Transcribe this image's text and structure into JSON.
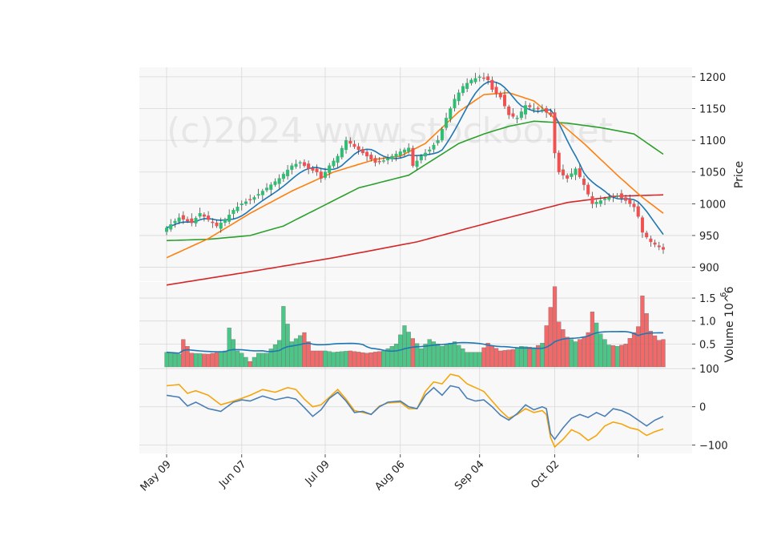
{
  "chart_data": {
    "type": "candlestick",
    "watermark": "(c)2024 www.stockoo.net",
    "x_ticks": [
      "May 09",
      "Jun 07",
      "Jul 09",
      "Aug 06",
      "Sep 04",
      "Oct 02"
    ],
    "colors": {
      "up": "#2ebd73",
      "down": "#f05050",
      "ma_short": "#1f77b4",
      "ma_mid": "#ff7f0e",
      "ma_long": "#2ca02c",
      "ma_200": "#d62728",
      "volume_avg": "#1f77b4",
      "osc_fast": "#4a7fb5",
      "osc_slow": "#f5a50a"
    },
    "price_panel": {
      "ylabel": "Price",
      "ylim": [
        878,
        1215
      ],
      "yticks": [
        900,
        950,
        1000,
        1050,
        1100,
        1150,
        1200
      ]
    },
    "volume_panel": {
      "ylabel": "Volume  10^6",
      "ylim": [
        0,
        1.85
      ],
      "yticks": [
        0.5,
        1.0,
        1.5
      ],
      "ytick_labels": [
        "0.5",
        "1.0",
        "1.5"
      ]
    },
    "oscillator_panel": {
      "ylim": [
        -122,
        102
      ],
      "yticks": [
        -100,
        0,
        100
      ],
      "ytick_labels": [
        "−100",
        "0",
        "100"
      ]
    },
    "close_anchors": [
      [
        0,
        962
      ],
      [
        3,
        978
      ],
      [
        6,
        970
      ],
      [
        8,
        985
      ],
      [
        10,
        975
      ],
      [
        12,
        965
      ],
      [
        14,
        975
      ],
      [
        16,
        990
      ],
      [
        18,
        1000
      ],
      [
        21,
        1010
      ],
      [
        24,
        1025
      ],
      [
        27,
        1040
      ],
      [
        30,
        1060
      ],
      [
        32,
        1065
      ],
      [
        34,
        1055
      ],
      [
        36,
        1050
      ],
      [
        37,
        1040
      ],
      [
        39,
        1060
      ],
      [
        41,
        1075
      ],
      [
        43,
        1100
      ],
      [
        46,
        1085
      ],
      [
        48,
        1075
      ],
      [
        50,
        1065
      ],
      [
        52,
        1068
      ],
      [
        54,
        1075
      ],
      [
        56,
        1082
      ],
      [
        58,
        1088
      ],
      [
        59,
        1060
      ],
      [
        61,
        1075
      ],
      [
        63,
        1085
      ],
      [
        65,
        1100
      ],
      [
        67,
        1135
      ],
      [
        69,
        1165
      ],
      [
        71,
        1185
      ],
      [
        73,
        1195
      ],
      [
        75,
        1200
      ],
      [
        77,
        1195
      ],
      [
        78,
        1180
      ],
      [
        80,
        1168
      ],
      [
        82,
        1140
      ],
      [
        84,
        1135
      ],
      [
        86,
        1155
      ],
      [
        88,
        1150
      ],
      [
        90,
        1148
      ],
      [
        92,
        1140
      ],
      [
        93,
        1080
      ],
      [
        94,
        1050
      ],
      [
        96,
        1040
      ],
      [
        98,
        1055
      ],
      [
        100,
        1030
      ],
      [
        102,
        1000
      ],
      [
        104,
        1005
      ],
      [
        106,
        1010
      ],
      [
        108,
        1013
      ],
      [
        110,
        1005
      ],
      [
        112,
        995
      ],
      [
        113,
        980
      ],
      [
        114,
        955
      ],
      [
        116,
        940
      ],
      [
        118,
        932
      ],
      [
        119,
        928
      ]
    ],
    "volume_anchors": [
      [
        0,
        0.32
      ],
      [
        3,
        0.28
      ],
      [
        4,
        0.6
      ],
      [
        6,
        0.3
      ],
      [
        10,
        0.28
      ],
      [
        14,
        0.35
      ],
      [
        15,
        0.85
      ],
      [
        17,
        0.35
      ],
      [
        18,
        0.3
      ],
      [
        20,
        0.12
      ],
      [
        22,
        0.3
      ],
      [
        24,
        0.3
      ],
      [
        27,
        0.58
      ],
      [
        28,
        1.32
      ],
      [
        30,
        0.55
      ],
      [
        33,
        0.75
      ],
      [
        35,
        0.35
      ],
      [
        38,
        0.35
      ],
      [
        40,
        0.32
      ],
      [
        44,
        0.35
      ],
      [
        48,
        0.3
      ],
      [
        52,
        0.35
      ],
      [
        55,
        0.5
      ],
      [
        57,
        0.9
      ],
      [
        59,
        0.62
      ],
      [
        61,
        0.4
      ],
      [
        63,
        0.6
      ],
      [
        66,
        0.45
      ],
      [
        69,
        0.55
      ],
      [
        72,
        0.32
      ],
      [
        75,
        0.32
      ],
      [
        77,
        0.52
      ],
      [
        80,
        0.35
      ],
      [
        83,
        0.38
      ],
      [
        85,
        0.45
      ],
      [
        88,
        0.42
      ],
      [
        90,
        0.52
      ],
      [
        91,
        0.9
      ],
      [
        92,
        1.3
      ],
      [
        93,
        1.75
      ],
      [
        94,
        0.98
      ],
      [
        96,
        0.65
      ],
      [
        98,
        0.55
      ],
      [
        100,
        0.65
      ],
      [
        101,
        0.75
      ],
      [
        102,
        1.2
      ],
      [
        104,
        0.72
      ],
      [
        106,
        0.48
      ],
      [
        108,
        0.45
      ],
      [
        110,
        0.5
      ],
      [
        112,
        0.75
      ],
      [
        113,
        0.88
      ],
      [
        114,
        1.55
      ],
      [
        116,
        0.78
      ],
      [
        118,
        0.58
      ],
      [
        119,
        0.6
      ]
    ],
    "oscillator_fast_anchors": [
      [
        0,
        30
      ],
      [
        3,
        25
      ],
      [
        5,
        2
      ],
      [
        7,
        12
      ],
      [
        10,
        -5
      ],
      [
        13,
        -12
      ],
      [
        16,
        12
      ],
      [
        18,
        18
      ],
      [
        20,
        15
      ],
      [
        23,
        28
      ],
      [
        26,
        18
      ],
      [
        29,
        25
      ],
      [
        31,
        20
      ],
      [
        33,
        -2
      ],
      [
        35,
        -25
      ],
      [
        37,
        -8
      ],
      [
        39,
        22
      ],
      [
        41,
        38
      ],
      [
        43,
        15
      ],
      [
        45,
        -15
      ],
      [
        47,
        -12
      ],
      [
        49,
        -20
      ],
      [
        51,
        0
      ],
      [
        53,
        12
      ],
      [
        56,
        15
      ],
      [
        58,
        0
      ],
      [
        60,
        -5
      ],
      [
        62,
        30
      ],
      [
        64,
        50
      ],
      [
        66,
        30
      ],
      [
        68,
        55
      ],
      [
        70,
        50
      ],
      [
        72,
        22
      ],
      [
        74,
        15
      ],
      [
        76,
        18
      ],
      [
        78,
        0
      ],
      [
        80,
        -22
      ],
      [
        82,
        -35
      ],
      [
        84,
        -18
      ],
      [
        86,
        5
      ],
      [
        88,
        -8
      ],
      [
        90,
        0
      ],
      [
        91,
        -5
      ],
      [
        92,
        -70
      ],
      [
        93,
        -85
      ],
      [
        95,
        -55
      ],
      [
        97,
        -30
      ],
      [
        99,
        -20
      ],
      [
        101,
        -28
      ],
      [
        103,
        -15
      ],
      [
        105,
        -25
      ],
      [
        107,
        -5
      ],
      [
        109,
        -10
      ],
      [
        111,
        -20
      ],
      [
        113,
        -35
      ],
      [
        115,
        -50
      ],
      [
        117,
        -35
      ],
      [
        119,
        -25
      ]
    ],
    "oscillator_slow_anchors": [
      [
        0,
        55
      ],
      [
        3,
        58
      ],
      [
        5,
        35
      ],
      [
        7,
        42
      ],
      [
        10,
        30
      ],
      [
        13,
        5
      ],
      [
        16,
        15
      ],
      [
        18,
        22
      ],
      [
        20,
        30
      ],
      [
        23,
        45
      ],
      [
        26,
        38
      ],
      [
        29,
        50
      ],
      [
        31,
        45
      ],
      [
        33,
        20
      ],
      [
        35,
        0
      ],
      [
        37,
        5
      ],
      [
        39,
        25
      ],
      [
        41,
        45
      ],
      [
        43,
        20
      ],
      [
        45,
        -10
      ],
      [
        47,
        -15
      ],
      [
        49,
        -20
      ],
      [
        51,
        2
      ],
      [
        53,
        10
      ],
      [
        56,
        12
      ],
      [
        58,
        -5
      ],
      [
        60,
        -5
      ],
      [
        62,
        40
      ],
      [
        64,
        65
      ],
      [
        66,
        60
      ],
      [
        68,
        85
      ],
      [
        70,
        80
      ],
      [
        72,
        60
      ],
      [
        74,
        50
      ],
      [
        76,
        40
      ],
      [
        78,
        15
      ],
      [
        80,
        -10
      ],
      [
        82,
        -30
      ],
      [
        84,
        -20
      ],
      [
        86,
        -5
      ],
      [
        88,
        -15
      ],
      [
        90,
        -10
      ],
      [
        91,
        -20
      ],
      [
        92,
        -80
      ],
      [
        93,
        -105
      ],
      [
        95,
        -85
      ],
      [
        97,
        -60
      ],
      [
        99,
        -70
      ],
      [
        101,
        -88
      ],
      [
        103,
        -75
      ],
      [
        105,
        -50
      ],
      [
        107,
        -40
      ],
      [
        109,
        -45
      ],
      [
        111,
        -55
      ],
      [
        113,
        -60
      ],
      [
        115,
        -75
      ],
      [
        117,
        -65
      ],
      [
        119,
        -58
      ]
    ]
  }
}
